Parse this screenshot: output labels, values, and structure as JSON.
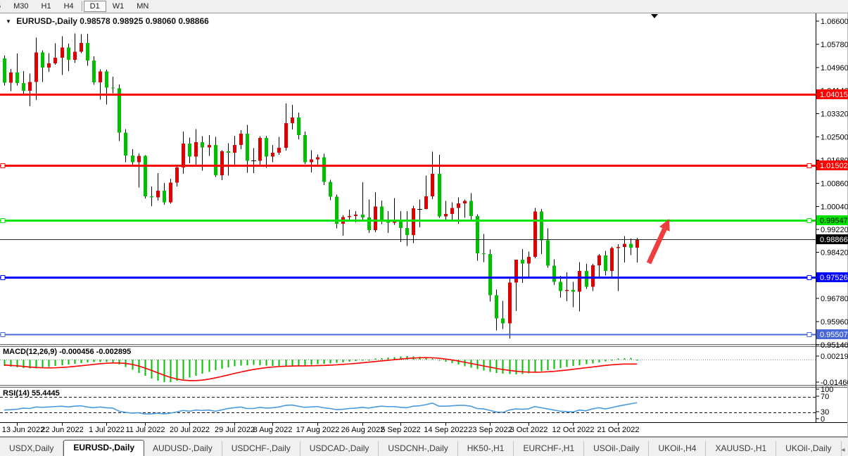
{
  "toolbar": {
    "timeframes": [
      "5",
      "M30",
      "H1",
      "H4",
      "D1",
      "W1",
      "MN"
    ],
    "active": "D1"
  },
  "tabs": {
    "items": [
      "USDX,Daily",
      "EURUSD-,Daily",
      "AUDUSD-,Daily",
      "USDCHF-,Daily",
      "USDCAD-,Daily",
      "USDCNH-,Daily",
      "HK50-,H1",
      "EURCHF-,H1",
      "USOil-,Daily",
      "UKOil-,H4",
      "XAUUSD-,H1",
      "UKOil-,Daily"
    ],
    "active": "EURUSD-,Daily",
    "nav_icons": [
      "◂",
      "▸"
    ]
  },
  "chart_data": [
    {
      "type": "candlestick",
      "title": "EURUSD-,Daily",
      "ohlc_label": "0.98578 0.98925 0.98060 0.98866",
      "colors": {
        "bull": "#dd0000",
        "bear": "#00c000",
        "wick": "#000000",
        "background": "#ffffff"
      },
      "y_ticks": [
        {
          "label": "1.06600",
          "price": 1.066
        },
        {
          "label": "1.05780",
          "price": 1.0578
        },
        {
          "label": "1.04960",
          "price": 1.0496
        },
        {
          "label": "1.04140",
          "price": 1.0414
        },
        {
          "label": "1.03320",
          "price": 1.0332
        },
        {
          "label": "1.02500",
          "price": 1.025
        },
        {
          "label": "1.01680",
          "price": 1.0168
        },
        {
          "label": "1.00860",
          "price": 1.0086
        },
        {
          "label": "1.00040",
          "price": 1.0004
        },
        {
          "label": "0.99220",
          "price": 0.9922
        },
        {
          "label": "0.98420",
          "price": 0.9842
        },
        {
          "label": "0.97600",
          "price": 0.976
        },
        {
          "label": "0.96780",
          "price": 0.9678
        },
        {
          "label": "0.95960",
          "price": 0.9596
        },
        {
          "label": "0.95140",
          "price": 0.9514
        }
      ],
      "x_ticks": [
        {
          "label": "13 Jun 2022",
          "bar": 2
        },
        {
          "label": "22 Jun 2022",
          "bar": 9
        },
        {
          "label": "1 Jul 2022",
          "bar": 16
        },
        {
          "label": "11 Jul 2022",
          "bar": 22
        },
        {
          "label": "20 Jul 2022",
          "bar": 29
        },
        {
          "label": "29 Jul 2022",
          "bar": 36
        },
        {
          "label": "8 Aug 2022",
          "bar": 42
        },
        {
          "label": "17 Aug 2022",
          "bar": 49
        },
        {
          "label": "26 Aug 2022",
          "bar": 56
        },
        {
          "label": "5 Sep 2022",
          "bar": 62
        },
        {
          "label": "14 Sep 2022",
          "bar": 69
        },
        {
          "label": "23 Sep 2022",
          "bar": 76
        },
        {
          "label": "3 Oct 2022",
          "bar": 82
        },
        {
          "label": "12 Oct 2022",
          "bar": 89
        },
        {
          "label": "21 Oct 2022",
          "bar": 96
        }
      ],
      "hlines": [
        {
          "price": 1.04015,
          "label": "1.04015",
          "color": "#ff0000",
          "text_color": "#ffffff",
          "width": 3,
          "handles": false
        },
        {
          "price": 1.01502,
          "label": "1.01502",
          "color": "#ff0000",
          "text_color": "#ffffff",
          "width": 3,
          "handles": true
        },
        {
          "price": 0.99547,
          "label": "0.99547",
          "color": "#00e400",
          "text_color": "#000000",
          "width": 3,
          "handles": true
        },
        {
          "price": 0.97526,
          "label": "0.97526",
          "color": "#0000ff",
          "text_color": "#ffffff",
          "width": 3,
          "handles": true
        },
        {
          "price": 0.95507,
          "label": "0.95507",
          "color": "#4868d8",
          "text_color": "#ffffff",
          "width": 2,
          "handles": true
        }
      ],
      "current_price": {
        "value": 0.98866,
        "label": "0.98866",
        "bg": "#000000",
        "text_color": "#ffffff"
      },
      "annotations": {
        "arrow": {
          "from": [
            922,
            374
          ],
          "to": [
            951,
            311
          ],
          "color": "#ef3e3e"
        },
        "shift_marker": {
          "x": 930,
          "color": "#000000"
        }
      },
      "candles": [
        [
          1.0528,
          1.0538,
          1.0432,
          1.0442
        ],
        [
          1.0442,
          1.049,
          1.0412,
          1.0478
        ],
        [
          1.0478,
          1.0546,
          1.0432,
          1.0441
        ],
        [
          1.0441,
          1.0483,
          1.0397,
          1.0413
        ],
        [
          1.0413,
          1.0475,
          1.0359,
          1.0444
        ],
        [
          1.0444,
          1.0601,
          1.0381,
          1.0549
        ],
        [
          1.0549,
          1.0557,
          1.0445,
          1.0496
        ],
        [
          1.0496,
          1.0547,
          1.0481,
          1.0511
        ],
        [
          1.0511,
          1.0582,
          1.0505,
          1.053
        ],
        [
          1.053,
          1.0606,
          1.0469,
          1.0566
        ],
        [
          1.0566,
          1.058,
          1.0483,
          1.0523
        ],
        [
          1.0523,
          1.0616,
          1.0512,
          1.0552
        ],
        [
          1.0552,
          1.0614,
          1.0547,
          1.0583
        ],
        [
          1.0583,
          1.0615,
          1.0502,
          1.052
        ],
        [
          1.052,
          1.0536,
          1.0435,
          1.0443
        ],
        [
          1.0443,
          1.0489,
          1.0382,
          1.0482
        ],
        [
          1.0482,
          1.0488,
          1.0365,
          1.0425
        ],
        [
          1.0425,
          1.0463,
          1.0405,
          1.0422
        ],
        [
          1.0422,
          1.0436,
          1.0235,
          1.0265
        ],
        [
          1.0265,
          1.0277,
          1.0161,
          1.0184
        ],
        [
          1.0184,
          1.0207,
          1.0144,
          1.016
        ],
        [
          1.016,
          1.0192,
          1.0071,
          1.0183
        ],
        [
          1.0183,
          1.0186,
          1.0032,
          1.004
        ],
        [
          1.004,
          1.0074,
          1.0005,
          1.0036
        ],
        [
          1.0036,
          1.0122,
          1.0025,
          1.006
        ],
        [
          1.006,
          1.0087,
          1.001,
          1.0018
        ],
        [
          1.0018,
          1.0102,
          1.0014,
          1.0088
        ],
        [
          1.0088,
          1.0149,
          1.0075,
          1.0142
        ],
        [
          1.0142,
          1.0269,
          1.0119,
          1.0227
        ],
        [
          1.0227,
          1.0248,
          1.0157,
          1.018
        ],
        [
          1.018,
          1.0278,
          1.0152,
          1.0232
        ],
        [
          1.0232,
          1.0253,
          1.0131,
          1.0213
        ],
        [
          1.0213,
          1.0257,
          1.0183,
          1.0222
        ],
        [
          1.0222,
          1.025,
          1.0108,
          1.0115
        ],
        [
          1.0115,
          1.0203,
          1.0097,
          1.0199
        ],
        [
          1.0199,
          1.0228,
          1.0113,
          1.0194
        ],
        [
          1.0194,
          1.0254,
          1.0144,
          1.0221
        ],
        [
          1.0221,
          1.0274,
          1.0207,
          1.0261
        ],
        [
          1.0261,
          1.0293,
          1.0123,
          1.0165
        ],
        [
          1.0165,
          1.021,
          1.0122,
          1.0166
        ],
        [
          1.0166,
          1.0253,
          1.0151,
          1.0247
        ],
        [
          1.0247,
          1.0254,
          1.0141,
          1.018
        ],
        [
          1.018,
          1.0221,
          1.0161,
          1.0194
        ],
        [
          1.0194,
          1.025,
          1.0187,
          1.0212
        ],
        [
          1.0212,
          1.0368,
          1.0202,
          1.0299
        ],
        [
          1.0299,
          1.0364,
          1.0276,
          1.0319
        ],
        [
          1.0319,
          1.0336,
          1.0241,
          1.0257
        ],
        [
          1.0257,
          1.0269,
          1.0154,
          1.016
        ],
        [
          1.016,
          1.0203,
          1.0124,
          1.0171
        ],
        [
          1.0171,
          1.0188,
          1.0147,
          1.0178
        ],
        [
          1.0178,
          1.0191,
          1.008,
          1.0091
        ],
        [
          1.0091,
          1.0098,
          1.0026,
          1.0038
        ],
        [
          1.0038,
          1.0046,
          0.9926,
          0.9943
        ],
        [
          0.9943,
          0.9972,
          0.99,
          0.9966
        ],
        [
          0.9966,
          0.9992,
          0.9958,
          0.997
        ],
        [
          0.997,
          0.9987,
          0.9947,
          0.9975
        ],
        [
          0.9975,
          1.009,
          0.9957,
          0.9965
        ],
        [
          0.9965,
          1.0028,
          0.991,
          0.992
        ],
        [
          0.992,
          1.0054,
          0.9912,
          1.0003
        ],
        [
          1.0003,
          1.0025,
          0.9941,
          0.9954
        ],
        [
          0.9954,
          0.9987,
          0.991,
          0.9946
        ],
        [
          0.9946,
          1.0033,
          0.9939,
          0.9952
        ],
        [
          0.9952,
          0.9987,
          0.9878,
          0.9928
        ],
        [
          0.9928,
          0.9987,
          0.9864,
          0.9903
        ],
        [
          0.9903,
          1.0006,
          0.9874,
          0.9997
        ],
        [
          0.9997,
          1.0029,
          0.993,
          0.9995
        ],
        [
          0.9995,
          1.0113,
          0.9993,
          1.004
        ],
        [
          1.004,
          1.0198,
          1.003,
          1.012
        ],
        [
          1.012,
          1.0187,
          0.9964,
          0.9969
        ],
        [
          0.9969,
          1.0023,
          0.9955,
          0.9978
        ],
        [
          0.9978,
          1.0018,
          0.9954,
          0.9999
        ],
        [
          0.9999,
          1.0036,
          0.9943,
          1.0015
        ],
        [
          1.0015,
          1.0029,
          0.9964,
          1.0023
        ],
        [
          1.0023,
          1.0051,
          0.9955,
          0.997
        ],
        [
          0.997,
          0.9976,
          0.9812,
          0.9838
        ],
        [
          0.9838,
          0.9907,
          0.9807,
          0.9835
        ],
        [
          0.9835,
          0.9852,
          0.9667,
          0.969
        ],
        [
          0.969,
          0.971,
          0.9565,
          0.9608
        ],
        [
          0.9608,
          0.967,
          0.957,
          0.959
        ],
        [
          0.959,
          0.975,
          0.9536,
          0.9735
        ],
        [
          0.9735,
          0.9816,
          0.9634,
          0.9815
        ],
        [
          0.9815,
          0.9853,
          0.9733,
          0.9802
        ],
        [
          0.9802,
          0.9844,
          0.9752,
          0.9826
        ],
        [
          0.9826,
          0.9999,
          0.982,
          0.9986
        ],
        [
          0.9986,
          0.9995,
          0.9835,
          0.9884
        ],
        [
          0.9884,
          0.9926,
          0.9787,
          0.9794
        ],
        [
          0.9794,
          0.9817,
          0.9726,
          0.9737
        ],
        [
          0.9737,
          0.9758,
          0.9681,
          0.9704
        ],
        [
          0.9704,
          0.9771,
          0.9668,
          0.9708
        ],
        [
          0.9708,
          0.9737,
          0.9647,
          0.9702
        ],
        [
          0.9702,
          0.9807,
          0.9632,
          0.9776
        ],
        [
          0.9776,
          0.98,
          0.9712,
          0.972
        ],
        [
          0.972,
          0.98,
          0.9705,
          0.9795
        ],
        [
          0.9795,
          0.9836,
          0.975,
          0.983
        ],
        [
          0.983,
          0.9846,
          0.9759,
          0.9775
        ],
        [
          0.9775,
          0.9862,
          0.9756,
          0.9856
        ],
        [
          0.9856,
          0.987,
          0.9705,
          0.986
        ],
        [
          0.986,
          0.9899,
          0.9806,
          0.9872
        ],
        [
          0.9872,
          0.989,
          0.9832,
          0.9858
        ],
        [
          0.98578,
          0.98925,
          0.9806,
          0.98866
        ]
      ]
    },
    {
      "type": "bar",
      "name": "MACD",
      "params": "12,26,9",
      "label": "MACD(12,26,9) -0.000456 -0.002895",
      "histogram_color": "#00c000",
      "signal_color": "#ff0000",
      "axis_labels": [
        {
          "text": "0.002193",
          "value": 0.002193
        },
        {
          "text": "-0.01460",
          "value": -0.0146
        }
      ],
      "values": [
        -0.0042,
        -0.0046,
        -0.005,
        -0.0055,
        -0.0058,
        -0.0056,
        -0.0052,
        -0.0047,
        -0.0042,
        -0.0037,
        -0.0032,
        -0.0027,
        -0.0022,
        -0.0018,
        -0.0016,
        -0.0015,
        -0.0016,
        -0.002,
        -0.0032,
        -0.0048,
        -0.0066,
        -0.0086,
        -0.0106,
        -0.0124,
        -0.0138,
        -0.0146,
        -0.0145,
        -0.0138,
        -0.0128,
        -0.0116,
        -0.0104,
        -0.0092,
        -0.008,
        -0.0069,
        -0.0059,
        -0.0051,
        -0.0044,
        -0.0039,
        -0.0036,
        -0.0035,
        -0.0036,
        -0.0038,
        -0.004,
        -0.0042,
        -0.0042,
        -0.0041,
        -0.0039,
        -0.0037,
        -0.0034,
        -0.003,
        -0.0027,
        -0.0024,
        -0.0021,
        -0.0018,
        -0.0014,
        -0.001,
        -0.0006,
        -0.0002,
        0.0003,
        0.0008,
        0.0013,
        0.0017,
        0.002,
        0.0022,
        0.0021,
        0.0018,
        0.0013,
        0.0006,
        -0.0003,
        -0.0013,
        -0.0023,
        -0.0033,
        -0.0043,
        -0.0053,
        -0.0062,
        -0.0071,
        -0.0079,
        -0.0086,
        -0.0091,
        -0.0094,
        -0.0095,
        -0.0093,
        -0.0089,
        -0.0083,
        -0.0076,
        -0.0069,
        -0.0062,
        -0.0055,
        -0.0048,
        -0.0042,
        -0.0036,
        -0.003,
        -0.0024,
        -0.0018,
        -0.0012,
        -0.0002,
        0.0004,
        0.0009,
        0.0011,
        -0.0005
      ],
      "signal": [
        -0.0035,
        -0.0038,
        -0.004,
        -0.0044,
        -0.0048,
        -0.0051,
        -0.0053,
        -0.0054,
        -0.0053,
        -0.0051,
        -0.0048,
        -0.0044,
        -0.004,
        -0.0036,
        -0.0031,
        -0.0027,
        -0.0024,
        -0.0022,
        -0.0022,
        -0.0025,
        -0.0031,
        -0.0041,
        -0.0054,
        -0.0069,
        -0.0085,
        -0.0101,
        -0.0115,
        -0.0126,
        -0.0133,
        -0.0136,
        -0.0136,
        -0.0133,
        -0.0127,
        -0.0119,
        -0.011,
        -0.01,
        -0.009,
        -0.0081,
        -0.0072,
        -0.0064,
        -0.0058,
        -0.0052,
        -0.0048,
        -0.0045,
        -0.0043,
        -0.0042,
        -0.0041,
        -0.0041,
        -0.004,
        -0.0039,
        -0.0038,
        -0.0036,
        -0.0034,
        -0.0031,
        -0.0028,
        -0.0025,
        -0.0021,
        -0.0017,
        -0.0013,
        -0.0009,
        -0.0005,
        -0.0001,
        0.0003,
        0.0007,
        0.001,
        0.0012,
        0.0013,
        0.0012,
        0.0009,
        0.0004,
        -0.0002,
        -0.0009,
        -0.0017,
        -0.0025,
        -0.0033,
        -0.0041,
        -0.0049,
        -0.0057,
        -0.0064,
        -0.007,
        -0.0075,
        -0.0079,
        -0.0081,
        -0.0082,
        -0.0081,
        -0.0079,
        -0.0076,
        -0.0072,
        -0.0068,
        -0.0063,
        -0.0058,
        -0.0053,
        -0.0048,
        -0.0043,
        -0.0038,
        -0.0034,
        -0.0031,
        -0.0029,
        -0.0029,
        -0.0029
      ]
    },
    {
      "type": "line",
      "name": "RSI",
      "params": "14",
      "label": "RSI(14) 55.4445",
      "line_color": "#4a9ade",
      "levels": [
        70,
        30
      ],
      "axis_labels": [
        "100",
        "70",
        "30",
        "0"
      ],
      "values": [
        36,
        37,
        38,
        41,
        40,
        44,
        43,
        44,
        45,
        46,
        44,
        46,
        47,
        44,
        42,
        44,
        42,
        41,
        33,
        30,
        28,
        29,
        26,
        26,
        28,
        26,
        28,
        31,
        35,
        33,
        36,
        35,
        36,
        33,
        36,
        40,
        42,
        44,
        40,
        40,
        43,
        41,
        42,
        44,
        48,
        49,
        46,
        43,
        44,
        45,
        42,
        40,
        37,
        38,
        40,
        41,
        43,
        41,
        44,
        46,
        45,
        45,
        43,
        42,
        46,
        47,
        50,
        54,
        46,
        46,
        47,
        48,
        48,
        46,
        40,
        39,
        35,
        31,
        30,
        36,
        39,
        38,
        39,
        45,
        42,
        39,
        36,
        33,
        32,
        31,
        36,
        34,
        39,
        42,
        39,
        42,
        46,
        49,
        52,
        55
      ]
    }
  ]
}
